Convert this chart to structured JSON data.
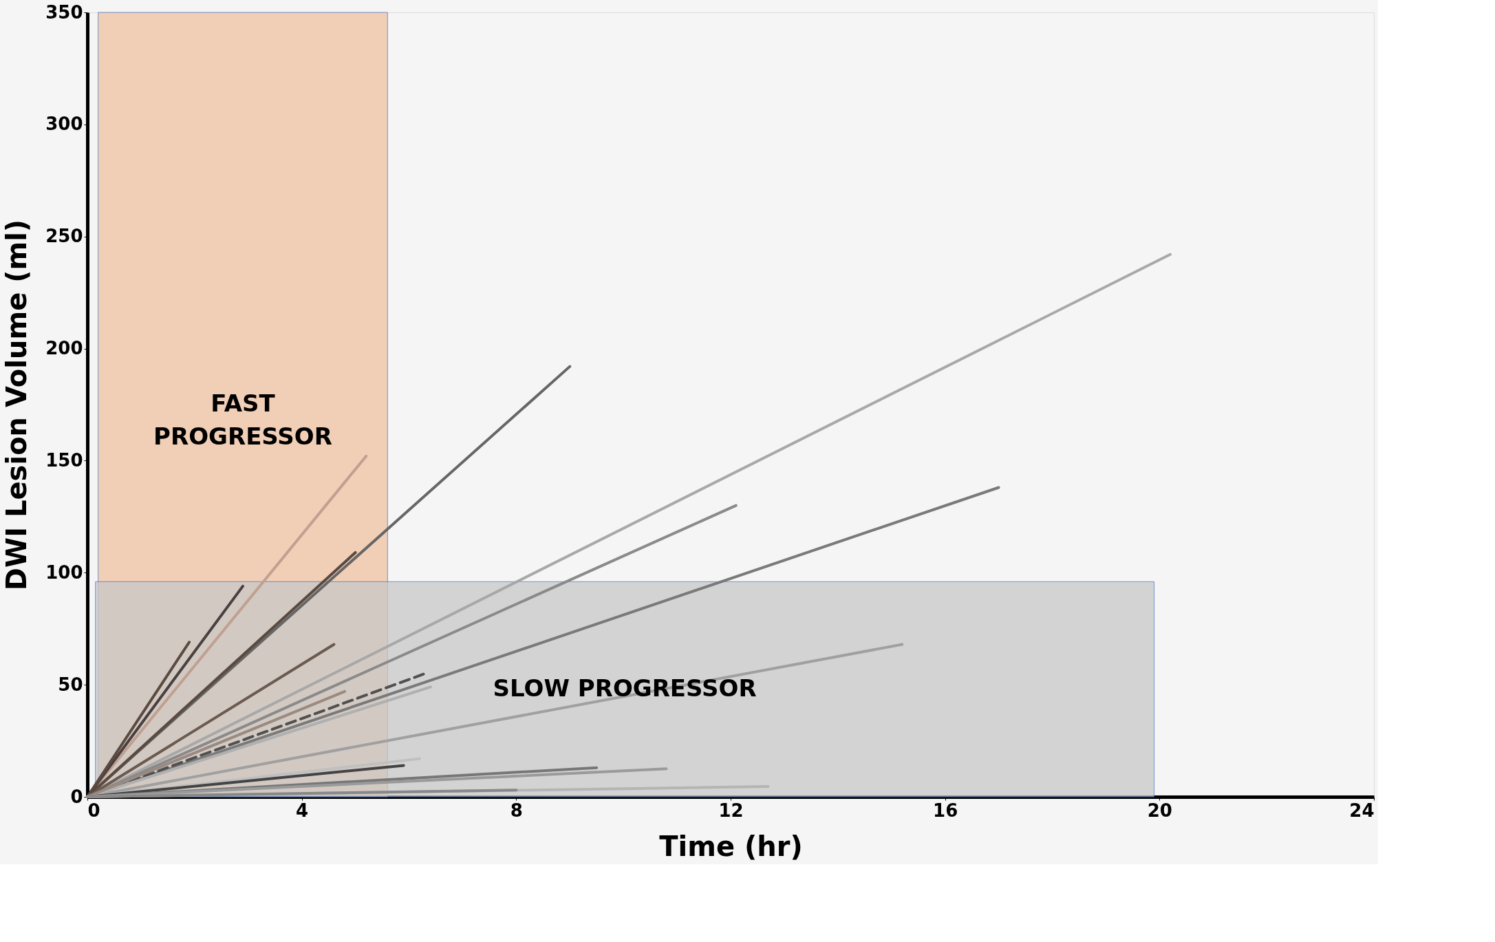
{
  "chart_data": {
    "type": "line",
    "xlabel": "Time (hr)",
    "ylabel": "DWI Lesion Volume (ml)",
    "xlim": [
      0,
      24
    ],
    "xticks": [
      0,
      4,
      8,
      12,
      16,
      20,
      24
    ],
    "ylim": [
      0,
      350
    ],
    "yticks": [
      0,
      50,
      100,
      150,
      200,
      250,
      300,
      350
    ],
    "grid": false,
    "annotations": [
      "FAST\nPROGRESSOR",
      "SLOW PROGRESSOR"
    ],
    "series": [
      {
        "type": "area",
        "color": "#f0c2a2",
        "x": [
          0.2,
          5.6
        ],
        "values": [
          350,
          350
        ]
      },
      {
        "type": "area",
        "color": "#c8c8c8",
        "x": [
          0.15,
          19.9
        ],
        "values": [
          96,
          96
        ]
      },
      {
        "color": "#a8a8a8",
        "x": [
          0,
          20.2
        ],
        "values": [
          0,
          242
        ]
      },
      {
        "color": "#666666",
        "x": [
          0,
          9.0
        ],
        "values": [
          0,
          192
        ]
      },
      {
        "color": "#8a8a8a",
        "x": [
          0,
          12.1
        ],
        "values": [
          0,
          130
        ]
      },
      {
        "color": "#7a7a7a",
        "x": [
          0,
          17.0
        ],
        "values": [
          0,
          138
        ]
      },
      {
        "color": "#a0a0a0",
        "x": [
          0,
          15.2
        ],
        "values": [
          0,
          68
        ]
      },
      {
        "color": "#c0a090",
        "x": [
          0,
          5.2
        ],
        "values": [
          0,
          152
        ]
      },
      {
        "color": "#5a4a40",
        "x": [
          0,
          5.0
        ],
        "values": [
          0,
          109
        ]
      },
      {
        "color": "#4a4040",
        "x": [
          0,
          2.9
        ],
        "values": [
          0,
          94
        ]
      },
      {
        "color": "#5a4a40",
        "x": [
          0,
          1.9
        ],
        "values": [
          0,
          69
        ]
      },
      {
        "color": "#6a5a50",
        "x": [
          0,
          4.6
        ],
        "values": [
          0,
          68
        ]
      },
      {
        "color": "#505050",
        "x": [
          0,
          6.3
        ],
        "values": [
          0,
          55
        ],
        "line_style": "dashed"
      },
      {
        "color": "#b0b0b0",
        "x": [
          0,
          6.4
        ],
        "values": [
          0,
          49
        ]
      },
      {
        "color": "#9a8a80",
        "x": [
          0,
          4.8
        ],
        "values": [
          0,
          47
        ]
      },
      {
        "color": "#c0c0c0",
        "x": [
          0,
          6.2
        ],
        "values": [
          0,
          17
        ]
      },
      {
        "color": "#444444",
        "x": [
          0,
          5.9
        ],
        "values": [
          0,
          14
        ]
      },
      {
        "color": "#777777",
        "x": [
          0,
          9.5
        ],
        "values": [
          0,
          13
        ]
      },
      {
        "color": "#9a9a9a",
        "x": [
          0,
          10.8
        ],
        "values": [
          0,
          12.5
        ]
      },
      {
        "color": "#b5b5b5",
        "x": [
          0,
          12.7
        ],
        "values": [
          0,
          4.6
        ]
      },
      {
        "color": "#888888",
        "x": [
          0,
          8.0
        ],
        "values": [
          0,
          3
        ]
      }
    ]
  }
}
